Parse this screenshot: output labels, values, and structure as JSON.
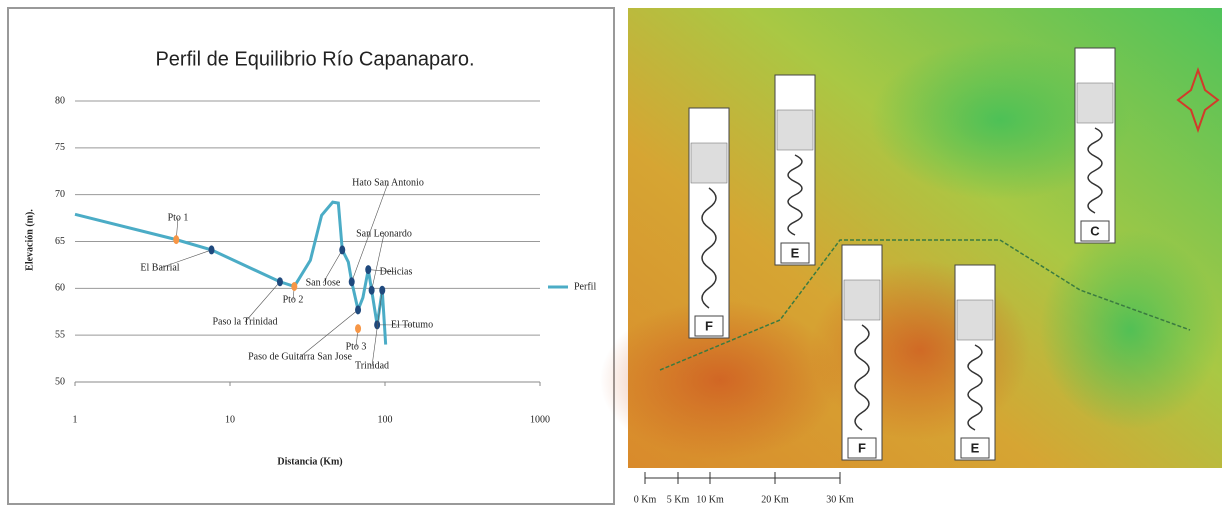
{
  "chart_data": {
    "type": "line",
    "title": "Perfil de Equilibrio Río Capanaparo.",
    "x_label": "Distancia (Km)",
    "y_label": "Elevación (m).",
    "xlim": [
      1,
      1000
    ],
    "xticks": [
      1,
      10,
      100,
      1000
    ],
    "x_log": true,
    "ylim": [
      50,
      80
    ],
    "yticks": [
      50,
      55,
      60,
      65,
      70,
      75,
      80
    ],
    "grid": true,
    "legend": "right",
    "series": [
      {
        "name": "Perfil",
        "color": "#4bacc6",
        "x": [
          1,
          4.5,
          7.6,
          21,
          26,
          33,
          39,
          46,
          50,
          53,
          58,
          61,
          67,
          72,
          78,
          82,
          89,
          96,
          101
        ],
        "values": [
          67.9,
          65.2,
          64.1,
          60.7,
          60.2,
          63,
          67.8,
          69.2,
          69.1,
          64.1,
          62.8,
          60.7,
          57.7,
          59,
          62,
          59.8,
          56.1,
          59.8,
          54
        ]
      }
    ],
    "points": [
      {
        "label": "Pto 1",
        "x": 4.5,
        "y": 65.2,
        "color": "#f79646"
      },
      {
        "label": "El Barrial",
        "x": 7.6,
        "y": 64.1,
        "color": "#1f497d"
      },
      {
        "label": "Paso la Trinidad",
        "x": 21,
        "y": 60.7,
        "color": "#1f497d"
      },
      {
        "label": "Pto 2",
        "x": 26,
        "y": 60.2,
        "color": "#f79646"
      },
      {
        "label": "San Jose",
        "x": 53,
        "y": 64.1,
        "color": "#1f497d"
      },
      {
        "label": "Hato San Antonio",
        "x": 61,
        "y": 60.7,
        "color": "#1f497d"
      },
      {
        "label": "Paso de Guitarra San Jose",
        "x": 67,
        "y": 57.7,
        "color": "#1f497d"
      },
      {
        "label": "Pto 3",
        "x": 67,
        "y": 55.7,
        "color": "#f79646"
      },
      {
        "label": "San Leonardo",
        "x": 82,
        "y": 59.8,
        "color": "#1f497d"
      },
      {
        "label": "Delicias",
        "x": 78,
        "y": 62,
        "color": "#1f497d"
      },
      {
        "label": "El Totumo",
        "x": 89,
        "y": 56.1,
        "color": "#1f497d"
      },
      {
        "label": "Trinidad",
        "x": 96,
        "y": 59.8,
        "color": "#1f497d"
      }
    ]
  },
  "map": {
    "panels": [
      "F",
      "E",
      "F",
      "E",
      "C"
    ],
    "scale_labels": [
      "0 Km",
      "5 Km",
      "10 Km",
      "20 Km",
      "30 Km"
    ]
  }
}
